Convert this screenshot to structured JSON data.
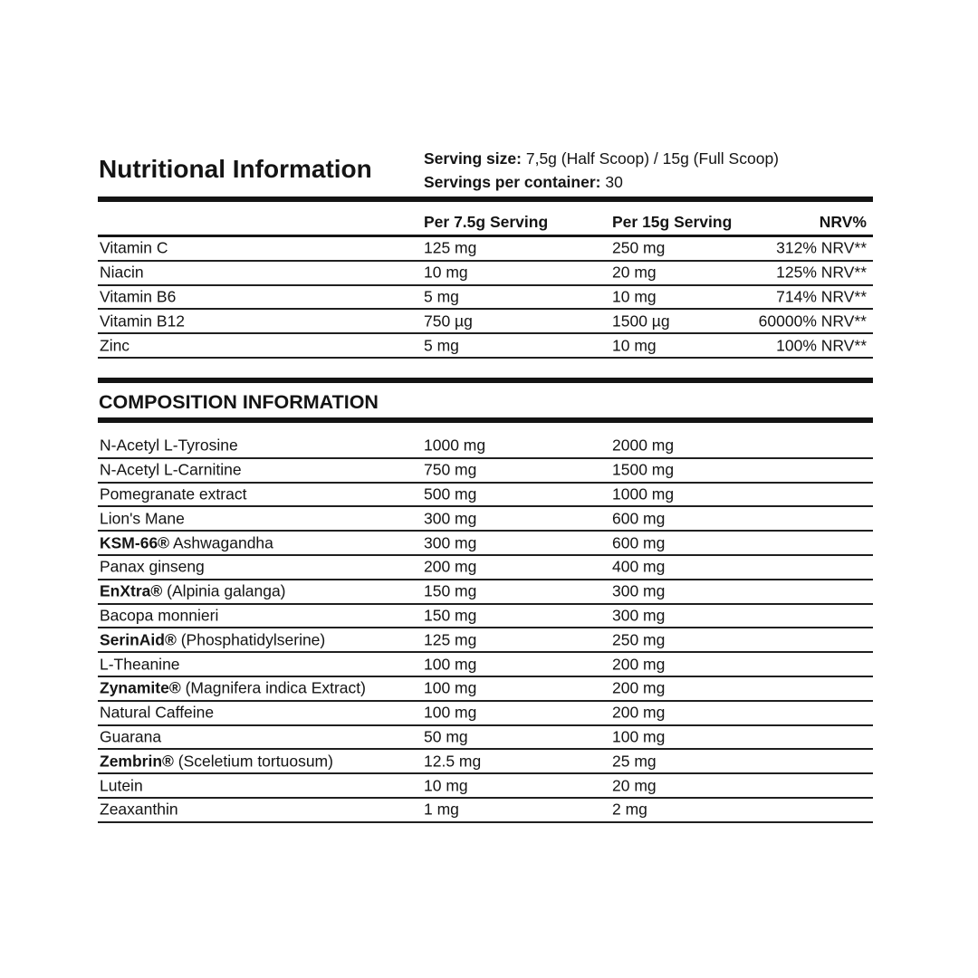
{
  "title": "Nutritional Information",
  "serving_info": {
    "size_label": "Serving size:",
    "size_value": "7,5g (Half Scoop) / 15g (Full Scoop)",
    "container_label": "Servings per container:",
    "container_value": "30"
  },
  "nutrition_table": {
    "columns": [
      "Per 7.5g Serving",
      "Per 15g Serving",
      "NRV%"
    ],
    "rows": [
      {
        "name": "Vitamin C",
        "per_7_5g": "125 mg",
        "per_15g": "250 mg",
        "nrv": "312% NRV**"
      },
      {
        "name": "Niacin",
        "per_7_5g": "10 mg",
        "per_15g": "20 mg",
        "nrv": "125% NRV**"
      },
      {
        "name": "Vitamin B6",
        "per_7_5g": "5 mg",
        "per_15g": "10 mg",
        "nrv": "714% NRV**"
      },
      {
        "name": "Vitamin B12",
        "per_7_5g": "750 µg",
        "per_15g": "1500 µg",
        "nrv": "60000% NRV**"
      },
      {
        "name": "Zinc",
        "per_7_5g": "5 mg",
        "per_15g": "10 mg",
        "nrv": "100% NRV**"
      }
    ]
  },
  "composition_table": {
    "title": "COMPOSITION INFORMATION",
    "rows": [
      {
        "brand": "",
        "name": "N-Acetyl L-Tyrosine",
        "per_7_5g": "1000 mg",
        "per_15g": "2000 mg"
      },
      {
        "brand": "",
        "name": "N-Acetyl L-Carnitine",
        "per_7_5g": "750 mg",
        "per_15g": "1500 mg"
      },
      {
        "brand": "",
        "name": "Pomegranate extract",
        "per_7_5g": "500 mg",
        "per_15g": "1000 mg"
      },
      {
        "brand": "",
        "name": "Lion's Mane",
        "per_7_5g": "300 mg",
        "per_15g": "600 mg"
      },
      {
        "brand": "KSM-66®",
        "name": " Ashwagandha",
        "per_7_5g": "300 mg",
        "per_15g": "600 mg"
      },
      {
        "brand": "",
        "name": "Panax ginseng",
        "per_7_5g": "200 mg",
        "per_15g": "400 mg"
      },
      {
        "brand": "EnXtra®",
        "name": " (Alpinia galanga)",
        "per_7_5g": "150 mg",
        "per_15g": "300 mg"
      },
      {
        "brand": "",
        "name": "Bacopa monnieri",
        "per_7_5g": "150 mg",
        "per_15g": "300 mg"
      },
      {
        "brand": "SerinAid®",
        "name": " (Phosphatidylserine)",
        "per_7_5g": "125 mg",
        "per_15g": "250 mg"
      },
      {
        "brand": "",
        "name": "L-Theanine",
        "per_7_5g": "100 mg",
        "per_15g": "200 mg"
      },
      {
        "brand": "Zynamite®",
        "name": " (Magnifera indica Extract)",
        "per_7_5g": "100 mg",
        "per_15g": "200 mg"
      },
      {
        "brand": "",
        "name": "Natural Caffeine",
        "per_7_5g": "100 mg",
        "per_15g": "200 mg"
      },
      {
        "brand": "",
        "name": "Guarana",
        "per_7_5g": "50 mg",
        "per_15g": "100 mg"
      },
      {
        "brand": "Zembrin®",
        "name": " (Sceletium tortuosum)",
        "per_7_5g": "12.5 mg",
        "per_15g": "25 mg"
      },
      {
        "brand": "",
        "name": "Lutein",
        "per_7_5g": "10 mg",
        "per_15g": "20 mg"
      },
      {
        "brand": "",
        "name": "Zeaxanthin",
        "per_7_5g": "1 mg",
        "per_15g": "2 mg"
      }
    ]
  }
}
